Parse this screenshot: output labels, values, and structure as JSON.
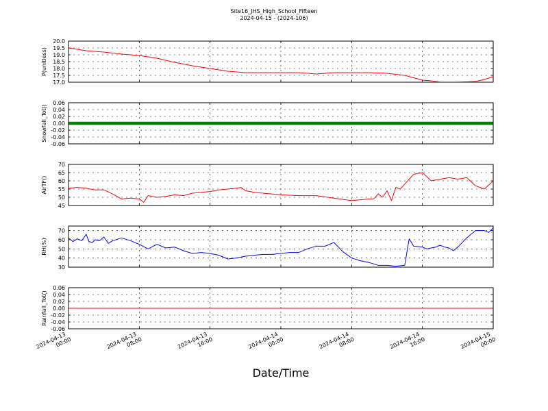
{
  "title": "Site16_JHS_High_School_Fifteen",
  "subtitle": "2024-04-15 - (2024-106)",
  "xlabel": "Date/Time",
  "x_ticks": [
    {
      "line1": "2024-04-13",
      "line2": "00:00",
      "hours": 0
    },
    {
      "line1": "2024-04-13",
      "line2": "08:00",
      "hours": 8
    },
    {
      "line1": "2024-04-13",
      "line2": "16:00",
      "hours": 16
    },
    {
      "line1": "2024-04-14",
      "line2": "00:00",
      "hours": 24
    },
    {
      "line1": "2024-04-14",
      "line2": "08:00",
      "hours": 32
    },
    {
      "line1": "2024-04-14",
      "line2": "16:00",
      "hours": 40
    },
    {
      "line1": "2024-04-15",
      "line2": "00:00",
      "hours": 48
    }
  ],
  "colors": {
    "pressure": "#ff0000",
    "snow": "#008000",
    "air": "#ff0000",
    "rh": "#0000ff",
    "rain": "#ff0000"
  },
  "chart_data": [
    {
      "type": "line",
      "ylabel": "P(unitless)",
      "ylim": [
        17.0,
        20.0
      ],
      "yticks": [
        "17.0",
        "17.5",
        "18.0",
        "18.5",
        "19.0",
        "19.5",
        "20.0"
      ],
      "grid": true,
      "x_hours": [
        0,
        2,
        4,
        6,
        8,
        10,
        12,
        14,
        16,
        18,
        20,
        22,
        24,
        26,
        28,
        30,
        32,
        34,
        36,
        38,
        40,
        41,
        42,
        44,
        46,
        47,
        48
      ],
      "values": [
        19.5,
        19.3,
        19.2,
        19.05,
        18.95,
        18.75,
        18.45,
        18.2,
        18.0,
        17.8,
        17.7,
        17.7,
        17.7,
        17.7,
        17.6,
        17.7,
        17.7,
        17.7,
        17.65,
        17.5,
        17.15,
        17.1,
        17.0,
        17.0,
        17.05,
        17.2,
        17.4
      ]
    },
    {
      "type": "scatter",
      "ylabel": "Snowfall_Tot()",
      "ylim": [
        -0.06,
        0.06
      ],
      "yticks": [
        "-0.06",
        "-0.04",
        "-0.02",
        "0.00",
        "0.02",
        "0.04",
        "0.06"
      ],
      "grid": true,
      "x_hours": [
        0,
        48
      ],
      "values": [
        0,
        0
      ]
    },
    {
      "type": "line",
      "ylabel": "AirTF()",
      "ylim": [
        45,
        70
      ],
      "yticks": [
        "45",
        "50",
        "55",
        "60",
        "65",
        "70"
      ],
      "grid": true,
      "x_hours": [
        0,
        1,
        2,
        3,
        4,
        5,
        6,
        7,
        8,
        8.5,
        9,
        10,
        11,
        12,
        13,
        14,
        15,
        16,
        17,
        18,
        19,
        19.5,
        20,
        21,
        22,
        24,
        26,
        28,
        30,
        32,
        33,
        34,
        34.5,
        35,
        35.5,
        36,
        36.5,
        37,
        37.5,
        38,
        38.5,
        39,
        40,
        41,
        42,
        43,
        44,
        45,
        46,
        47,
        48
      ],
      "values": [
        55.5,
        56,
        55.5,
        54.5,
        54.5,
        52,
        49,
        49.5,
        49,
        47,
        51,
        50,
        50.5,
        51.5,
        51,
        52.5,
        53,
        53.5,
        54.5,
        55,
        55.5,
        56,
        54,
        53,
        52.5,
        51.5,
        51,
        51,
        49.5,
        48,
        48.5,
        49,
        49,
        52,
        50,
        54,
        48,
        56,
        55,
        58,
        61,
        64,
        65,
        60,
        61,
        62,
        61,
        62,
        57,
        55,
        60
      ]
    },
    {
      "type": "line",
      "ylabel": "RH(%)",
      "ylim": [
        30,
        75
      ],
      "yticks": [
        "30",
        "40",
        "50",
        "60",
        "70"
      ],
      "grid": true,
      "x_hours": [
        0,
        0.5,
        1,
        1.5,
        2,
        2.3,
        2.7,
        3,
        3.5,
        4,
        4.5,
        5,
        6,
        7,
        8,
        9,
        10,
        11,
        12,
        13,
        14,
        15,
        16,
        17,
        18,
        19,
        20,
        21,
        22,
        23,
        24,
        25,
        26,
        27,
        28,
        29,
        30,
        31,
        32,
        33,
        34,
        35,
        36,
        37,
        38,
        38.5,
        38.7,
        39,
        40,
        40.5,
        41,
        41.5,
        42,
        42.5,
        43,
        43.5,
        44,
        45,
        46,
        47,
        47.5,
        48
      ],
      "values": [
        62,
        58,
        61,
        59,
        66,
        58,
        57,
        60,
        59,
        63,
        56,
        59,
        62,
        59,
        55,
        50,
        55,
        51,
        52,
        48,
        45,
        46,
        45,
        43,
        39,
        40,
        42,
        43,
        44,
        44,
        45,
        46,
        46,
        50,
        53,
        53,
        57,
        47,
        40,
        37,
        35,
        32,
        32,
        31,
        32,
        61,
        58,
        53,
        52,
        50,
        51,
        52,
        54,
        52,
        51,
        48,
        52,
        62,
        70,
        70,
        68,
        73
      ]
    },
    {
      "type": "line",
      "ylabel": "Rainfall_Tot()",
      "ylim": [
        -0.06,
        0.06
      ],
      "yticks": [
        "-0.06",
        "-0.04",
        "-0.02",
        "0.00",
        "0.02",
        "0.04",
        "0.06"
      ],
      "grid": true,
      "x_hours": [
        0,
        48
      ],
      "values": [
        0,
        0
      ]
    }
  ]
}
